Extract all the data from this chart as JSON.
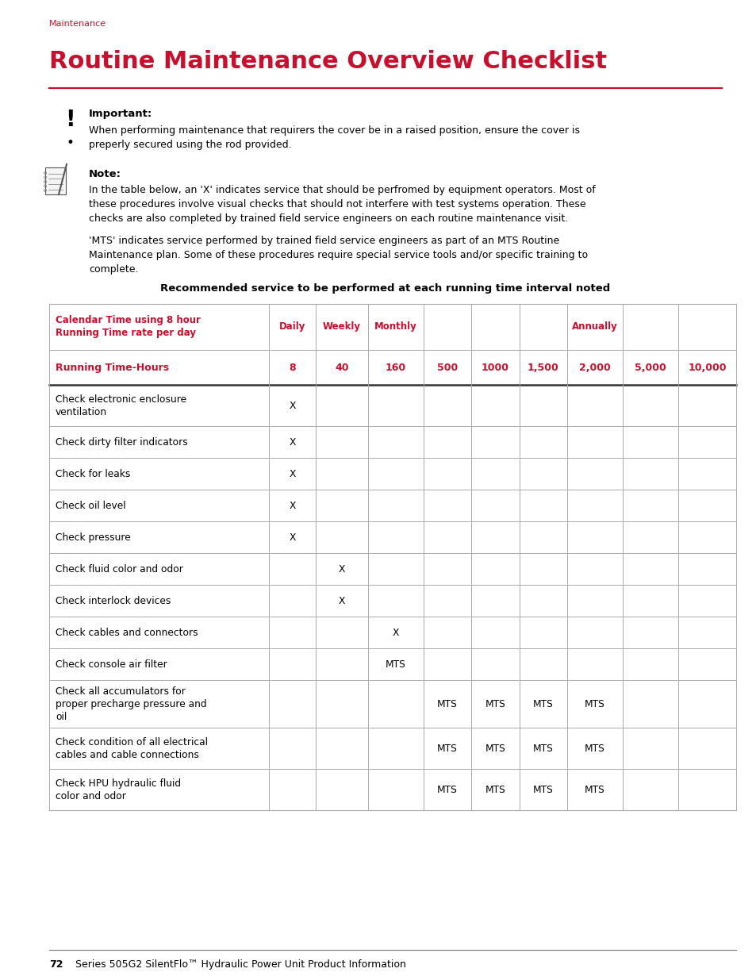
{
  "page_label": "Maintenance",
  "title": "Routine Maintenance Overview Checklist",
  "title_color": "#C8102E",
  "important_label": "Important:",
  "important_text": "When performing maintenance that requirers the cover be in a raised position, ensure the cover is\npreperly secured using the rod provided.",
  "note_label": "Note:",
  "note_text1": "In the table below, an 'X' indicates service that should be perfromed by equipment operators. Most of\nthese procedures involve visual checks that should not interfere with test systems operation. These\nchecks are also completed by trained field service engineers on each routine maintenance visit.",
  "note_text2": "'MTS' indicates service performed by trained field service engineers as part of an MTS Routine\nMaintenance plan. Some of these procedures require special service tools and/or specific training to\ncomplete.",
  "table_caption": "Recommended service to be performed at each running time interval noted",
  "col_headers_row1": [
    "Calendar Time using 8 hour\nRunning Time rate per day",
    "Daily",
    "Weekly",
    "Monthly",
    "",
    "",
    "",
    "Annually",
    "",
    ""
  ],
  "col_headers_row2": [
    "Running Time-Hours",
    "8",
    "40",
    "160",
    "500",
    "1000",
    "1,500",
    "2,000",
    "5,000",
    "10,000"
  ],
  "table_rows": [
    [
      "Check electronic enclosure\nventilation",
      "X",
      "",
      "",
      "",
      "",
      "",
      "",
      "",
      ""
    ],
    [
      "Check dirty filter indicators",
      "X",
      "",
      "",
      "",
      "",
      "",
      "",
      "",
      ""
    ],
    [
      "Check for leaks",
      "X",
      "",
      "",
      "",
      "",
      "",
      "",
      "",
      ""
    ],
    [
      "Check oil level",
      "X",
      "",
      "",
      "",
      "",
      "",
      "",
      "",
      ""
    ],
    [
      "Check pressure",
      "X",
      "",
      "",
      "",
      "",
      "",
      "",
      "",
      ""
    ],
    [
      "Check fluid color and odor",
      "",
      "X",
      "",
      "",
      "",
      "",
      "",
      "",
      ""
    ],
    [
      "Check interlock devices",
      "",
      "X",
      "",
      "",
      "",
      "",
      "",
      "",
      ""
    ],
    [
      "Check cables and connectors",
      "",
      "",
      "X",
      "",
      "",
      "",
      "",
      "",
      ""
    ],
    [
      "Check console air filter",
      "",
      "",
      "MTS",
      "",
      "",
      "",
      "",
      "",
      ""
    ],
    [
      "Check all accumulators for\nproper precharge pressure and\noil",
      "",
      "",
      "",
      "MTS",
      "MTS",
      "MTS",
      "MTS",
      "",
      ""
    ],
    [
      "Check condition of all electrical\ncables and cable connections",
      "",
      "",
      "",
      "MTS",
      "MTS",
      "MTS",
      "MTS",
      "",
      ""
    ],
    [
      "Check HPU hydraulic fluid\ncolor and odor",
      "",
      "",
      "",
      "MTS",
      "MTS",
      "MTS",
      "MTS",
      "",
      ""
    ]
  ],
  "header_color": "#C8102E",
  "line_color": "#aaaaaa",
  "bg_color": "#ffffff",
  "footer_text": "72   Series 505G2 SilentFlo™ Hydraulic Power Unit Product Information"
}
